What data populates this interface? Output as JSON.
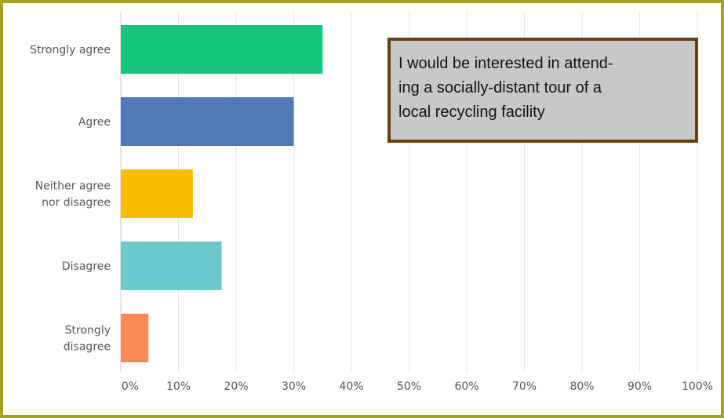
{
  "chart_data": {
    "type": "bar",
    "orientation": "horizontal",
    "categories": [
      [
        "Strongly agree"
      ],
      [
        "Agree"
      ],
      [
        "Neither agree",
        "nor disagree"
      ],
      [
        "Disagree"
      ],
      [
        "Strongly",
        "disagree"
      ]
    ],
    "values": [
      35,
      30,
      12.5,
      17.5,
      4.8
    ],
    "colors": [
      "#13c47b",
      "#5179b8",
      "#f8bf00",
      "#6dcacc",
      "#fb8a55"
    ],
    "xlim": [
      0,
      100
    ],
    "x_ticks": [
      "0%",
      "10%",
      "20%",
      "30%",
      "40%",
      "50%",
      "60%",
      "70%",
      "80%",
      "90%",
      "100%"
    ],
    "grid": "vertical",
    "annotation": [
      "I would be interested in attend-",
      "ing a socially-distant tour of a",
      "local recycling facility"
    ]
  }
}
